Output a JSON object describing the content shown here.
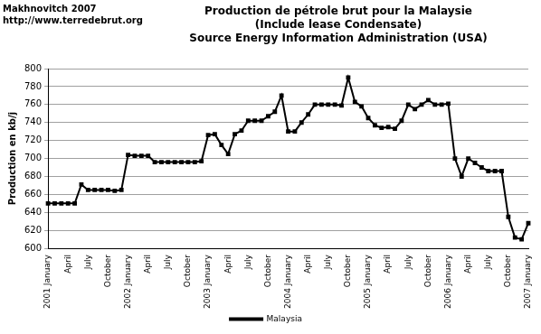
{
  "chart_data": {
    "type": "line",
    "title": "Production de pétrole brut pour la Malaysie\n(Include lease Condensate)\nSource Energy Information Administration (USA)",
    "annotations": [
      "Makhnovitch 2007",
      "http://www.terredebrut.org"
    ],
    "y_label": "Production en kb/j",
    "categories": [
      "2001 January",
      null,
      null,
      "April",
      null,
      null,
      "July",
      null,
      null,
      "October",
      null,
      null,
      "2002 January",
      null,
      null,
      "April",
      null,
      null,
      "July",
      null,
      null,
      "October",
      null,
      null,
      "2003 January",
      null,
      null,
      "April",
      null,
      null,
      "July",
      null,
      null,
      "October",
      null,
      null,
      "2004 January",
      null,
      null,
      "April",
      null,
      null,
      "July",
      null,
      null,
      "October",
      null,
      null,
      "2005 January",
      null,
      null,
      "April",
      null,
      null,
      "July",
      null,
      null,
      "October",
      null,
      null,
      "2006 January",
      null,
      null,
      "April",
      null,
      null,
      "July",
      null,
      null,
      "October",
      null,
      null,
      "2007 January"
    ],
    "series": [
      {
        "name": "Malaysia",
        "color": "#000000",
        "marker": "square",
        "line_style": "solid",
        "values": [
          650,
          650,
          650,
          650,
          650,
          671,
          665,
          665,
          665,
          665,
          664,
          665,
          704,
          703,
          703,
          703,
          696,
          696,
          696,
          696,
          696,
          696,
          696,
          697,
          726,
          727,
          715,
          705,
          727,
          731,
          742,
          742,
          742,
          747,
          752,
          770,
          730,
          730,
          740,
          749,
          760,
          760,
          760,
          760,
          759,
          790,
          763,
          758,
          745,
          737,
          734,
          735,
          733,
          742,
          760,
          755,
          760,
          765,
          760,
          760,
          761,
          700,
          680,
          700,
          695,
          690,
          686,
          686,
          686,
          635,
          612,
          610,
          628
        ]
      }
    ],
    "ylim": [
      600,
      800
    ],
    "yticks": [
      600,
      620,
      640,
      660,
      680,
      700,
      720,
      740,
      760,
      780,
      800
    ],
    "grid": true,
    "legend": "bottom"
  }
}
